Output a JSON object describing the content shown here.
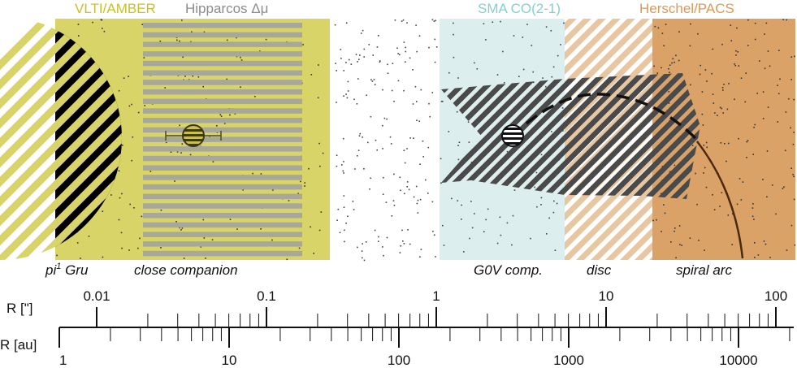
{
  "title_labels": {
    "vlti": "VLTI/AMBER",
    "hipparcos": "Hipparcos Δμ",
    "sma": "SMA CO(2-1)",
    "herschel": "Herschel/PACS"
  },
  "region_labels": {
    "star": "pi",
    "star_sup": "1",
    "star_suffix": " Gru",
    "close_companion": "close companion",
    "g0v": "G0V comp.",
    "disc": "disc",
    "spiral": "spiral arc"
  },
  "axes": {
    "arcsec_label": "R [\"]",
    "au_label": "R [au]",
    "arcsec_ticks": [
      "0.01",
      "0.1",
      "1",
      "10",
      "100"
    ],
    "au_ticks": [
      "1",
      "10",
      "100",
      "1000",
      "10000"
    ]
  },
  "colors": {
    "vlti": "#d9d468",
    "vlti_text": "#c7c02a",
    "hipparcos_text": "#8c8c8c",
    "sma": "#dcefee",
    "sma_text": "#86cfcf",
    "herschel": "#dba267",
    "herschel_text": "#d99a58",
    "disc": "#e8c6a0"
  }
}
